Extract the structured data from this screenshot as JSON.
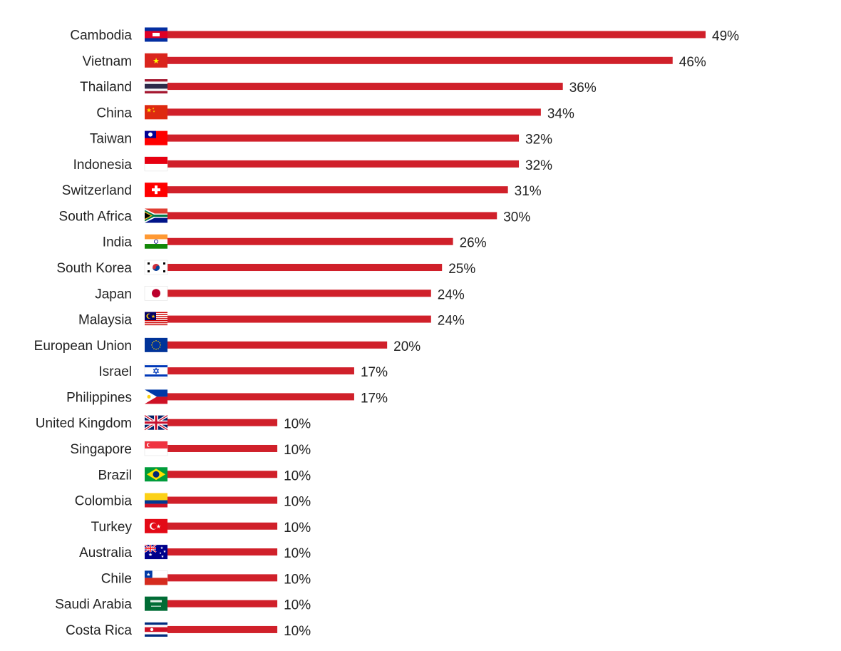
{
  "chart_data": {
    "type": "bar",
    "orientation": "horizontal",
    "title": "",
    "xlabel": "",
    "ylabel": "",
    "xlim": [
      0,
      49
    ],
    "grid": false,
    "legend": "none",
    "bar_color": "#D0202A",
    "categories": [
      "Cambodia",
      "Vietnam",
      "Thailand",
      "China",
      "Taiwan",
      "Indonesia",
      "Switzerland",
      "South Africa",
      "India",
      "South Korea",
      "Japan",
      "Malaysia",
      "European Union",
      "Israel",
      "Philippines",
      "United Kingdom",
      "Singapore",
      "Brazil",
      "Colombia",
      "Turkey",
      "Australia",
      "Chile",
      "Saudi Arabia",
      "Costa Rica"
    ],
    "values": [
      49,
      46,
      36,
      34,
      32,
      32,
      31,
      30,
      26,
      25,
      24,
      24,
      20,
      17,
      17,
      10,
      10,
      10,
      10,
      10,
      10,
      10,
      10,
      10
    ],
    "value_labels": [
      "49%",
      "46%",
      "36%",
      "34%",
      "32%",
      "32%",
      "31%",
      "30%",
      "26%",
      "25%",
      "24%",
      "24%",
      "20%",
      "17%",
      "17%",
      "10%",
      "10%",
      "10%",
      "10%",
      "10%",
      "10%",
      "10%",
      "10%",
      "10%"
    ],
    "flag_icons": [
      "cambodia-flag-icon",
      "vietnam-flag-icon",
      "thailand-flag-icon",
      "china-flag-icon",
      "taiwan-flag-icon",
      "indonesia-flag-icon",
      "switzerland-flag-icon",
      "south-africa-flag-icon",
      "india-flag-icon",
      "south-korea-flag-icon",
      "japan-flag-icon",
      "malaysia-flag-icon",
      "european-union-flag-icon",
      "israel-flag-icon",
      "philippines-flag-icon",
      "united-kingdom-flag-icon",
      "singapore-flag-icon",
      "brazil-flag-icon",
      "colombia-flag-icon",
      "turkey-flag-icon",
      "australia-flag-icon",
      "chile-flag-icon",
      "saudi-arabia-flag-icon",
      "costa-rica-flag-icon"
    ]
  }
}
